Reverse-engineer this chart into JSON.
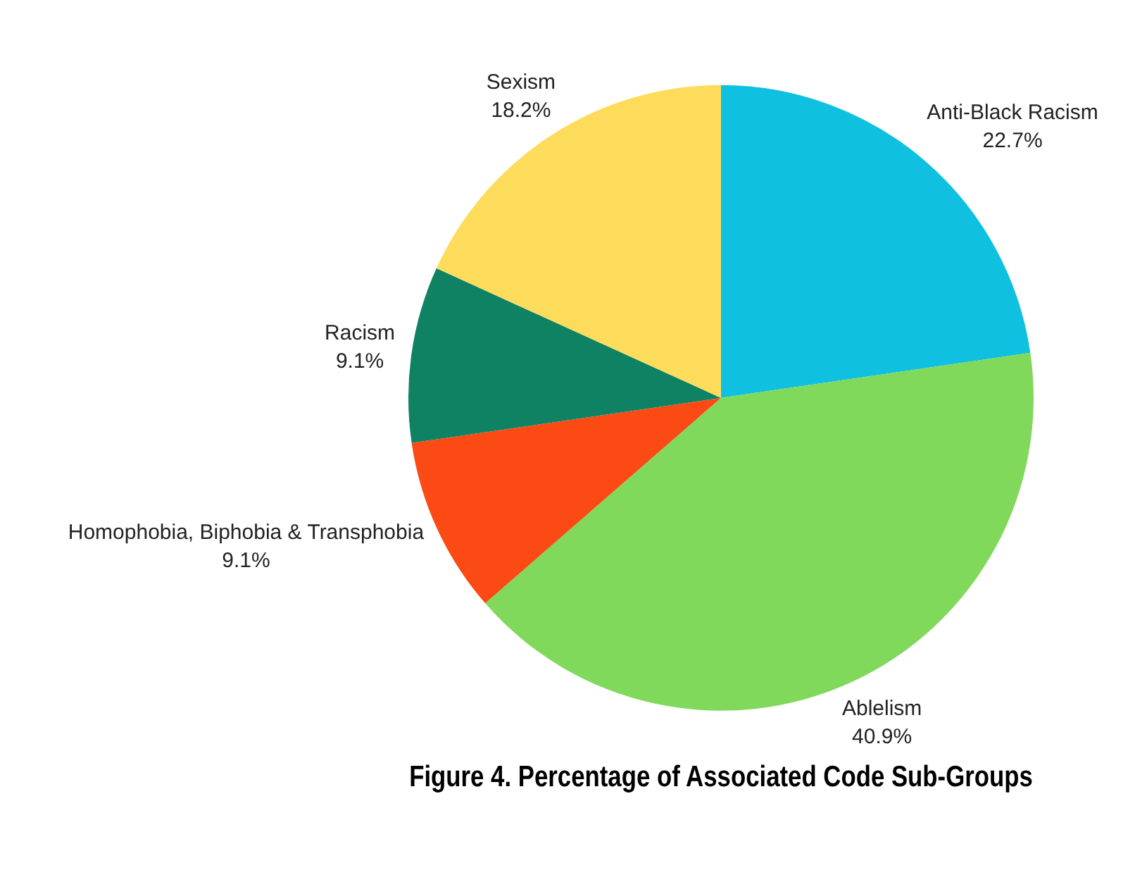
{
  "chart_data": {
    "type": "pie",
    "title": "Figure 4. Percentage of Associated Code Sub-Groups",
    "categories": [
      "Anti-Black Racism",
      "Ablelism",
      "Homophobia, Biphobia & Transphobia",
      "Racism",
      "Sexism"
    ],
    "values": [
      22.7,
      40.9,
      9.1,
      9.1,
      18.2
    ],
    "colors": [
      "#10c0e0",
      "#80d95a",
      "#fc4a14",
      "#0f8264",
      "#fddc5c"
    ],
    "value_labels": [
      "22.7%",
      "40.9%",
      "9.1%",
      "9.1%",
      "18.2%"
    ],
    "legend": false
  }
}
